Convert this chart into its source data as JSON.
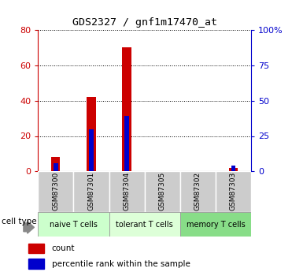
{
  "title": "GDS2327 / gnf1m17470_at",
  "samples": [
    "GSM87300",
    "GSM87301",
    "GSM87304",
    "GSM87305",
    "GSM87302",
    "GSM87303"
  ],
  "count_values": [
    8,
    42,
    70,
    0,
    0,
    2
  ],
  "percentile_values": [
    6,
    30,
    39,
    0,
    0,
    4
  ],
  "cell_types": [
    {
      "label": "naive T cells",
      "start": 0,
      "end": 2,
      "color": "#ccffcc"
    },
    {
      "label": "tolerant T cells",
      "start": 2,
      "end": 4,
      "color": "#ddffd8"
    },
    {
      "label": "memory T cells",
      "start": 4,
      "end": 6,
      "color": "#88dd88"
    }
  ],
  "left_axis_color": "#cc0000",
  "right_axis_color": "#0000cc",
  "left_ylim": [
    0,
    80
  ],
  "right_ylim": [
    0,
    100
  ],
  "left_yticks": [
    0,
    20,
    40,
    60,
    80
  ],
  "right_yticks": [
    0,
    25,
    50,
    75,
    100
  ],
  "right_yticklabels": [
    "0",
    "25",
    "50",
    "75",
    "100%"
  ],
  "bar_color_count": "#cc0000",
  "bar_color_percentile": "#0000cc",
  "count_bar_width": 0.25,
  "percentile_bar_width": 0.12,
  "sample_bg_color": "#cccccc",
  "cell_type_label": "cell type",
  "legend_count": "count",
  "legend_percentile": "percentile rank within the sample"
}
